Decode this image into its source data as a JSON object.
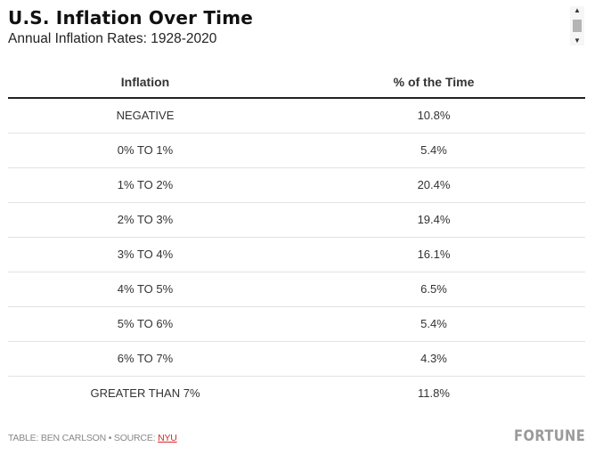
{
  "header": {
    "title": "U.S. Inflation Over Time",
    "subtitle": "Annual Inflation Rates: 1928-2020"
  },
  "scrollbar": {
    "up_arrow": "▲",
    "down_arrow": "▼"
  },
  "table": {
    "columns": [
      "Inflation",
      "% of the Time"
    ],
    "rows": [
      [
        "NEGATIVE",
        "10.8%"
      ],
      [
        "0% TO 1%",
        "5.4%"
      ],
      [
        "1% TO 2%",
        "20.4%"
      ],
      [
        "2% TO 3%",
        "19.4%"
      ],
      [
        "3% TO 4%",
        "16.1%"
      ],
      [
        "4% TO 5%",
        "6.5%"
      ],
      [
        "5% TO 6%",
        "5.4%"
      ],
      [
        "6% TO 7%",
        "4.3%"
      ],
      [
        "GREATER THAN 7%",
        "11.8%"
      ]
    ]
  },
  "footer": {
    "credit": "TABLE: BEN CARLSON • SOURCE: ",
    "source_link": "NYU",
    "brand": "FORTUNE"
  },
  "colors": {
    "link": "#d62728",
    "header_rule": "#222222",
    "row_rule": "#e2e2e2",
    "brand": "#9a9a9a"
  }
}
